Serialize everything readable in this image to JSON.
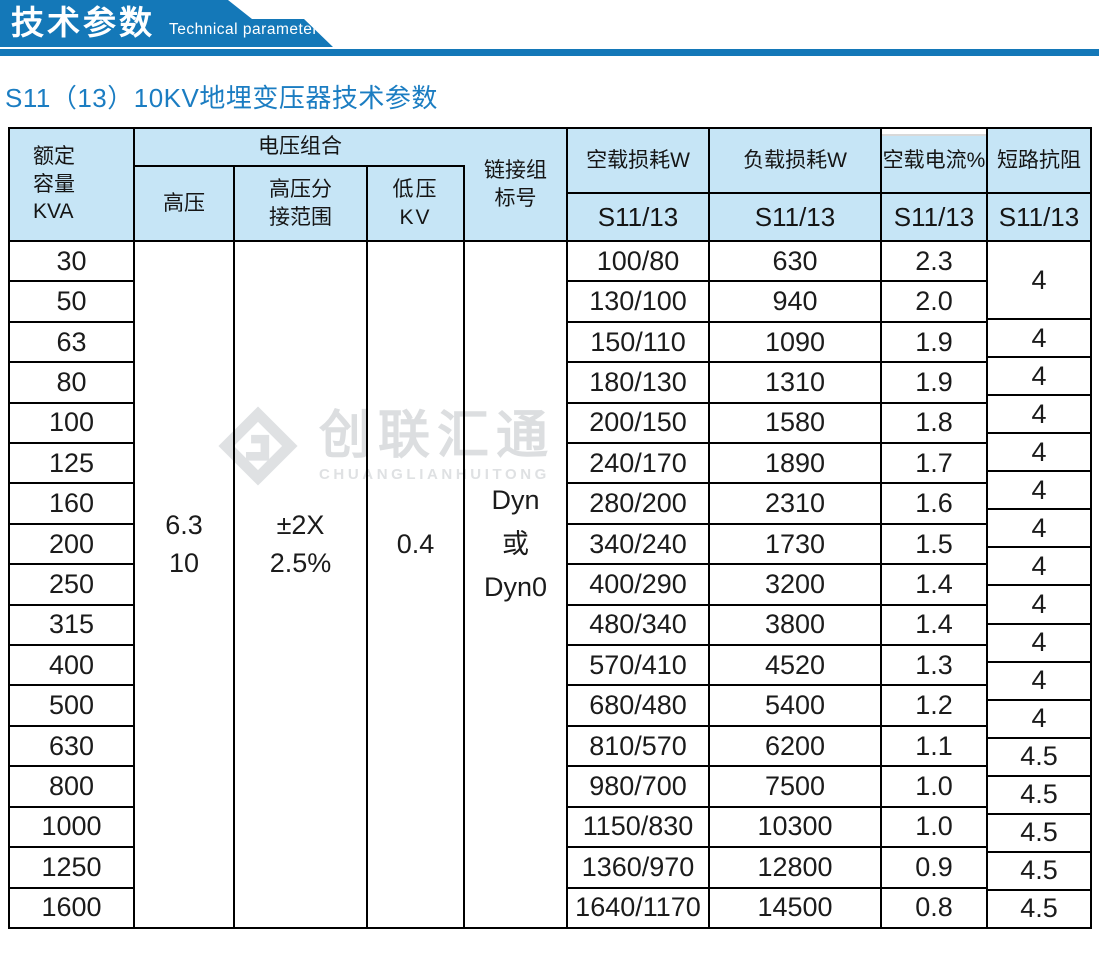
{
  "banner": {
    "title_zh": "技术参数",
    "title_en": "Technical parameter"
  },
  "subtitle": "S11（13）10KV地埋变压器技术参数",
  "watermark": {
    "logo": "diamond-logo",
    "zh": "创联汇通",
    "en": "CHUANGLIANHUITONG"
  },
  "colors": {
    "banner_blue": "#1478b8",
    "subtitle_blue": "#1b7dc2",
    "header_fill": "#c6e5f6",
    "border": "#000000",
    "watermark_gray": "#dcdee0"
  },
  "table": {
    "header": {
      "capacity_lines": [
        "额定",
        "容量",
        "KVA"
      ],
      "voltage_group": "电压组合",
      "hv": "高压",
      "hv_tap_lines": [
        "高压分",
        "接范围"
      ],
      "lv_lines": [
        "低压",
        "KV"
      ],
      "connection_lines": [
        "链接组",
        "标号"
      ],
      "noload_loss": "空载损耗W",
      "load_loss": "负载损耗W",
      "noload_current": "空载电流%",
      "impedance": "短路抗阻",
      "series": "S11/13"
    },
    "merged": {
      "hv_lines": [
        "6.3",
        "10"
      ],
      "hv_tap_lines": [
        "±2X",
        "2.5%"
      ],
      "lv": "0.4",
      "connection_lines": [
        "Dyn",
        "或",
        "Dyn0"
      ]
    },
    "rows": [
      {
        "capacity": "30",
        "noload_loss": "100/80",
        "load_loss": "630",
        "noload_current": "2.3",
        "impedance": "4"
      },
      {
        "capacity": "50",
        "noload_loss": "130/100",
        "load_loss": "940",
        "noload_current": "2.0",
        "impedance": "4"
      },
      {
        "capacity": "63",
        "noload_loss": "150/110",
        "load_loss": "1090",
        "noload_current": "1.9",
        "impedance": "4"
      },
      {
        "capacity": "80",
        "noload_loss": "180/130",
        "load_loss": "1310",
        "noload_current": "1.9",
        "impedance": "4"
      },
      {
        "capacity": "100",
        "noload_loss": "200/150",
        "load_loss": "1580",
        "noload_current": "1.8",
        "impedance": "4"
      },
      {
        "capacity": "125",
        "noload_loss": "240/170",
        "load_loss": "1890",
        "noload_current": "1.7",
        "impedance": "4"
      },
      {
        "capacity": "160",
        "noload_loss": "280/200",
        "load_loss": "2310",
        "noload_current": "1.6",
        "impedance": "4"
      },
      {
        "capacity": "200",
        "noload_loss": "340/240",
        "load_loss": "1730",
        "noload_current": "1.5",
        "impedance": "4"
      },
      {
        "capacity": "250",
        "noload_loss": "400/290",
        "load_loss": "3200",
        "noload_current": "1.4",
        "impedance": "4"
      },
      {
        "capacity": "315",
        "noload_loss": "480/340",
        "load_loss": "3800",
        "noload_current": "1.4",
        "impedance": "4"
      },
      {
        "capacity": "400",
        "noload_loss": "570/410",
        "load_loss": "4520",
        "noload_current": "1.3",
        "impedance": "4"
      },
      {
        "capacity": "500",
        "noload_loss": "680/480",
        "load_loss": "5400",
        "noload_current": "1.2",
        "impedance": "4"
      },
      {
        "capacity": "630",
        "noload_loss": "810/570",
        "load_loss": "6200",
        "noload_current": "1.1",
        "impedance": "4.5"
      },
      {
        "capacity": "800",
        "noload_loss": "980/700",
        "load_loss": "7500",
        "noload_current": "1.0",
        "impedance": "4.5"
      },
      {
        "capacity": "1000",
        "noload_loss": "1150/830",
        "load_loss": "10300",
        "noload_current": "1.0",
        "impedance": "4.5"
      },
      {
        "capacity": "1250",
        "noload_loss": "1360/970",
        "load_loss": "12800",
        "noload_current": "0.9",
        "impedance": "4.5"
      },
      {
        "capacity": "1600",
        "noload_loss": "1640/1170",
        "load_loss": "14500",
        "noload_current": "0.8",
        "impedance": "4.5"
      }
    ]
  }
}
